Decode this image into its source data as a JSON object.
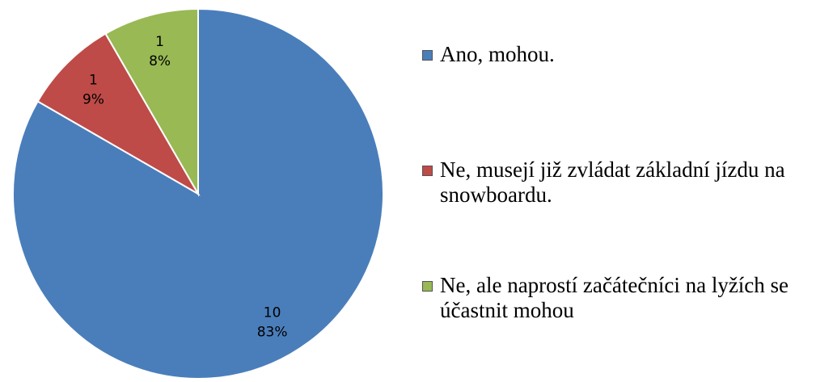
{
  "chart_data": {
    "type": "pie",
    "categories": [
      "Ano, mohou.",
      "Ne, musejí již zvládat základní jízdu na snowboardu.",
      "Ne, ale naprostí začátečníci na lyžích se účastnit mohou"
    ],
    "values": [
      10,
      1,
      1
    ],
    "percent_labels": [
      "83%",
      "9%",
      "8%"
    ],
    "colors": [
      "#4a7ebb",
      "#be4b48",
      "#98b954"
    ],
    "legend": "right"
  }
}
